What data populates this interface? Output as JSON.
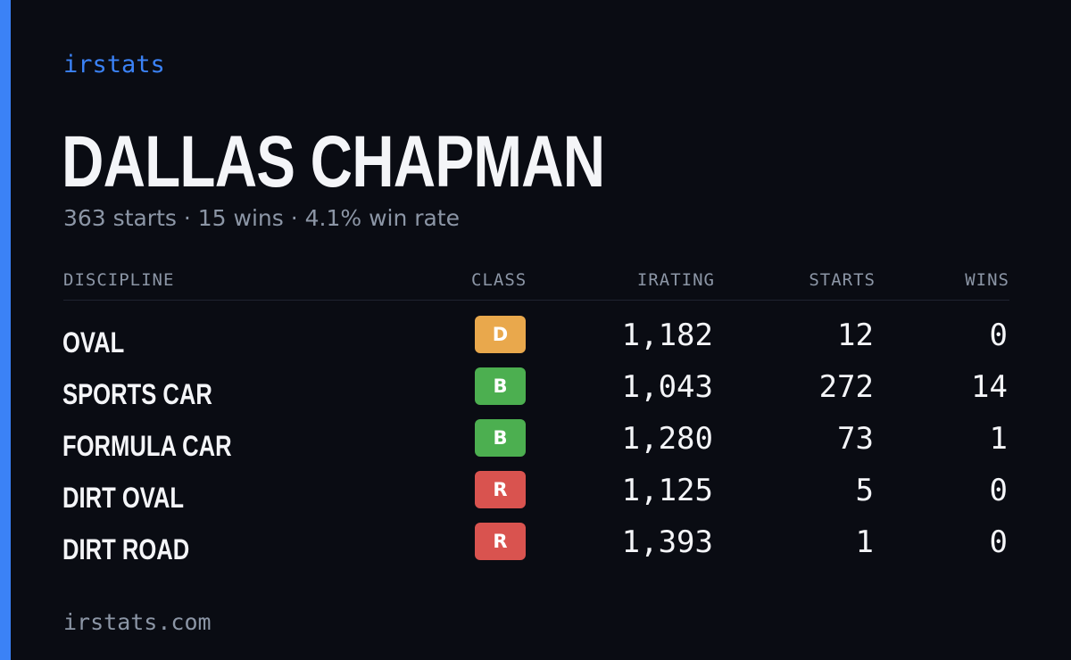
{
  "brand": "irstats",
  "profile": {
    "name": "DALLAS CHAPMAN",
    "summary": "363 starts · 15 wins · 4.1% win rate"
  },
  "table": {
    "headers": {
      "discipline": "DISCIPLINE",
      "class": "CLASS",
      "irating": "IRATING",
      "starts": "STARTS",
      "wins": "WINS"
    },
    "rows": [
      {
        "discipline": "OVAL",
        "class": "D",
        "class_color": "#e9a84c",
        "irating": "1,182",
        "starts": "12",
        "wins": "0"
      },
      {
        "discipline": "SPORTS CAR",
        "class": "B",
        "class_color": "#4caf50",
        "irating": "1,043",
        "starts": "272",
        "wins": "14"
      },
      {
        "discipline": "FORMULA CAR",
        "class": "B",
        "class_color": "#4caf50",
        "irating": "1,280",
        "starts": "73",
        "wins": "1"
      },
      {
        "discipline": "DIRT OVAL",
        "class": "R",
        "class_color": "#d9534f",
        "irating": "1,125",
        "starts": "5",
        "wins": "0"
      },
      {
        "discipline": "DIRT ROAD",
        "class": "R",
        "class_color": "#d9534f",
        "irating": "1,393",
        "starts": "1",
        "wins": "0"
      }
    ]
  },
  "footer": "irstats.com",
  "colors": {
    "accent": "#3b82f6",
    "background": "#0a0c13",
    "muted_text": "#8c96a6"
  }
}
